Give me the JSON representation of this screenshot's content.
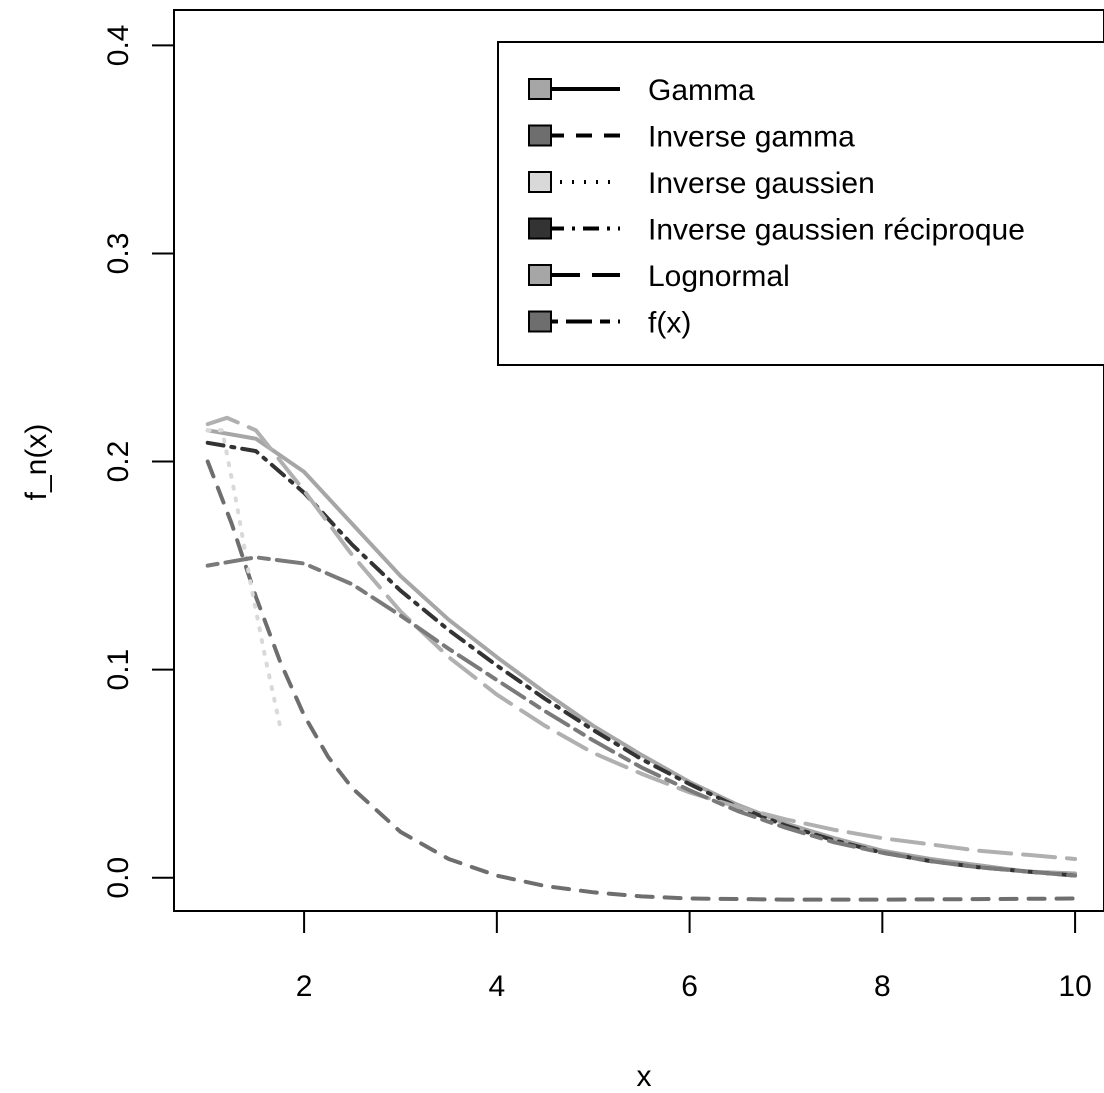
{
  "chart_data": {
    "type": "line",
    "title": "",
    "xlabel": "x",
    "ylabel": "f_n(x)",
    "xlim": [
      0.65,
      10.3
    ],
    "ylim": [
      -0.016,
      0.417
    ],
    "x_ticks": [
      2,
      4,
      6,
      8,
      10
    ],
    "y_ticks": [
      0.0,
      0.1,
      0.2,
      0.3,
      0.4
    ],
    "x_tick_labels": [
      "2",
      "4",
      "6",
      "8",
      "10"
    ],
    "y_tick_labels": [
      "0.0",
      "0.1",
      "0.2",
      "0.3",
      "0.4"
    ],
    "grid": false,
    "legend_position": "top-right",
    "series": [
      {
        "name": "Gamma",
        "color": "#a6a6a6",
        "swatch": "#a6a6a6",
        "dash": "solid",
        "x": [
          1.0,
          1.5,
          2.0,
          2.5,
          3.0,
          3.5,
          4.0,
          4.5,
          5.0,
          5.5,
          6.0,
          6.5,
          7.0,
          7.5,
          8.0,
          8.5,
          9.0,
          9.5,
          10.0
        ],
        "y": [
          0.215,
          0.211,
          0.195,
          0.17,
          0.145,
          0.124,
          0.106,
          0.089,
          0.073,
          0.059,
          0.046,
          0.035,
          0.026,
          0.019,
          0.013,
          0.009,
          0.006,
          0.003,
          0.002
        ]
      },
      {
        "name": "Inverse gamma",
        "color": "#6e6e6e",
        "swatch": "#6e6e6e",
        "dash": "dashed",
        "x": [
          1.0,
          1.25,
          1.5,
          1.75,
          2.0,
          2.25,
          2.5,
          3.0,
          3.5,
          4.0,
          4.5,
          5.0,
          5.5,
          6.0,
          7.0,
          8.0,
          9.0,
          10.0
        ],
        "y": [
          0.2,
          0.17,
          0.135,
          0.104,
          0.078,
          0.058,
          0.043,
          0.022,
          0.009,
          0.001,
          -0.004,
          -0.007,
          -0.009,
          -0.01,
          -0.0105,
          -0.0105,
          -0.0103,
          -0.01
        ]
      },
      {
        "name": "Inverse gaussien",
        "color": "#d9d9d9",
        "swatch": "#d9d9d9",
        "dash": "dotted",
        "x": [
          1.0,
          1.15,
          1.3,
          1.45,
          1.6,
          1.75
        ],
        "y": [
          0.215,
          0.215,
          0.18,
          0.14,
          0.105,
          0.073
        ]
      },
      {
        "name": "Inverse gaussien réciproque",
        "color": "#333333",
        "swatch": "#333333",
        "dash": "dashdot",
        "x": [
          1.0,
          1.5,
          2.0,
          2.5,
          3.0,
          3.5,
          4.0,
          4.5,
          5.0,
          5.5,
          6.0,
          6.5,
          7.0,
          7.5,
          8.0,
          8.5,
          9.0,
          9.5,
          10.0
        ],
        "y": [
          0.209,
          0.205,
          0.185,
          0.16,
          0.138,
          0.119,
          0.102,
          0.086,
          0.071,
          0.057,
          0.045,
          0.034,
          0.025,
          0.018,
          0.012,
          0.008,
          0.005,
          0.003,
          0.001
        ]
      },
      {
        "name": "Lognormal",
        "color": "#b0b0b0",
        "swatch": "#a6a6a6",
        "dash": "longdash",
        "x": [
          1.0,
          1.2,
          1.5,
          2.0,
          2.5,
          3.0,
          3.5,
          4.0,
          4.5,
          5.0,
          5.5,
          6.0,
          6.5,
          7.0,
          7.5,
          8.0,
          8.5,
          9.0,
          9.5,
          10.0
        ],
        "y": [
          0.218,
          0.221,
          0.215,
          0.186,
          0.155,
          0.128,
          0.106,
          0.088,
          0.073,
          0.06,
          0.05,
          0.041,
          0.034,
          0.028,
          0.023,
          0.019,
          0.016,
          0.013,
          0.011,
          0.009
        ]
      },
      {
        "name": "f(x)",
        "color": "#7a7a7a",
        "swatch": "#6e6e6e",
        "dash": "twodash",
        "x": [
          1.0,
          1.5,
          2.0,
          2.5,
          3.0,
          3.5,
          4.0,
          4.5,
          5.0,
          5.5,
          6.0,
          6.5,
          7.0,
          7.5,
          8.0,
          8.5,
          9.0,
          9.5,
          10.0
        ],
        "y": [
          0.15,
          0.154,
          0.151,
          0.141,
          0.126,
          0.11,
          0.095,
          0.08,
          0.066,
          0.053,
          0.042,
          0.032,
          0.024,
          0.017,
          0.012,
          0.008,
          0.005,
          0.003,
          0.001
        ]
      }
    ]
  }
}
